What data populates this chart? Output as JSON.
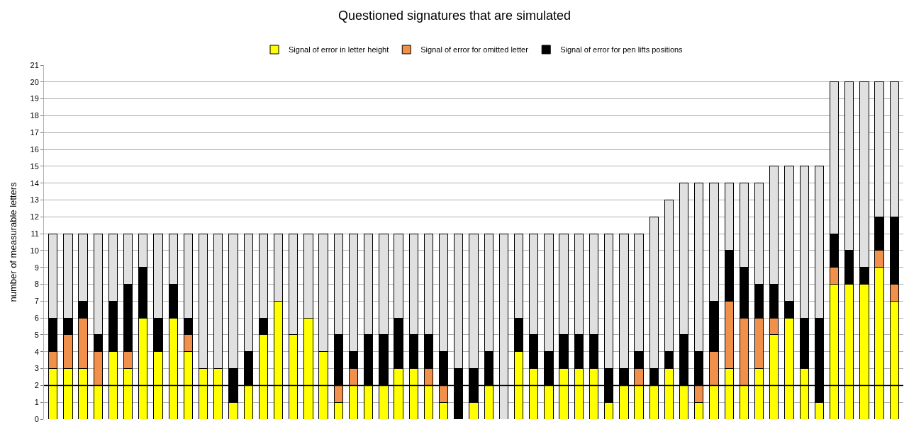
{
  "chart_data": {
    "type": "bar",
    "stacked": true,
    "title": "Questioned signatures that are simulated",
    "ylabel": "number of measurable letters",
    "categories": [
      null,
      null,
      null,
      null,
      null,
      null,
      null,
      null,
      null,
      null,
      null,
      null,
      null,
      null,
      null,
      null,
      null,
      null,
      null,
      null,
      null,
      null,
      null,
      null,
      null,
      null,
      null,
      null,
      null,
      null,
      null,
      null,
      null,
      null,
      null,
      null,
      null,
      null,
      null,
      null,
      null,
      null,
      null,
      null,
      null,
      null,
      null,
      null,
      null,
      null,
      null,
      null,
      null,
      null,
      null,
      null,
      null
    ],
    "series": [
      {
        "name": "Signal of error in letter height",
        "color": "#ffff00",
        "values": [
          3,
          3,
          3,
          2,
          4,
          3,
          6,
          4,
          6,
          4,
          3,
          3,
          1,
          2,
          5,
          7,
          5,
          6,
          4,
          1,
          2,
          2,
          2,
          3,
          3,
          2,
          1,
          0,
          1,
          2,
          0,
          4,
          3,
          2,
          3,
          3,
          3,
          1,
          2,
          2,
          2,
          3,
          2,
          1,
          2,
          3,
          2,
          3,
          5,
          6,
          3,
          1,
          8,
          8,
          8,
          9,
          7
        ]
      },
      {
        "name": "Signal of error for omitted letter",
        "color": "#f0904a",
        "values": [
          1,
          2,
          3,
          2,
          0,
          1,
          0,
          0,
          0,
          1,
          0,
          0,
          0,
          0,
          0,
          0,
          0,
          0,
          0,
          1,
          1,
          0,
          0,
          0,
          0,
          1,
          1,
          0,
          0,
          0,
          0,
          0,
          0,
          0,
          0,
          0,
          0,
          0,
          0,
          1,
          0,
          0,
          0,
          1,
          2,
          4,
          4,
          3,
          1,
          0,
          0,
          0,
          1,
          0,
          0,
          1,
          1
        ]
      },
      {
        "name": "Signal of error for pen lifts positions",
        "color": "#000000",
        "values": [
          2,
          1,
          1,
          1,
          3,
          4,
          3,
          2,
          2,
          1,
          0,
          0,
          2,
          2,
          1,
          0,
          0,
          0,
          0,
          3,
          1,
          3,
          3,
          3,
          2,
          2,
          2,
          3,
          2,
          2,
          0,
          2,
          2,
          2,
          2,
          2,
          2,
          2,
          1,
          1,
          1,
          1,
          3,
          2,
          3,
          3,
          3,
          2,
          2,
          1,
          3,
          5,
          2,
          2,
          1,
          2,
          4
        ]
      },
      {
        "color": "#e0e0e0",
        "values": [
          5,
          5,
          4,
          6,
          4,
          3,
          2,
          5,
          3,
          5,
          8,
          8,
          8,
          7,
          5,
          4,
          6,
          5,
          7,
          6,
          7,
          6,
          6,
          5,
          6,
          6,
          7,
          8,
          8,
          7,
          11,
          5,
          6,
          7,
          6,
          6,
          6,
          8,
          8,
          7,
          9,
          9,
          9,
          10,
          7,
          4,
          5,
          6,
          7,
          8,
          9,
          9,
          9,
          10,
          11,
          8,
          8
        ]
      }
    ],
    "ylim": [
      0,
      21
    ],
    "yticks": [
      0,
      1,
      2,
      3,
      4,
      5,
      6,
      7,
      8,
      9,
      10,
      11,
      12,
      13,
      14,
      15,
      16,
      17,
      18,
      19,
      20,
      21
    ],
    "ref_lines": [
      {
        "axis": "y",
        "value": 2,
        "color": "#000000"
      }
    ],
    "grid": "y",
    "legend": "top",
    "tick_labels": "y"
  }
}
